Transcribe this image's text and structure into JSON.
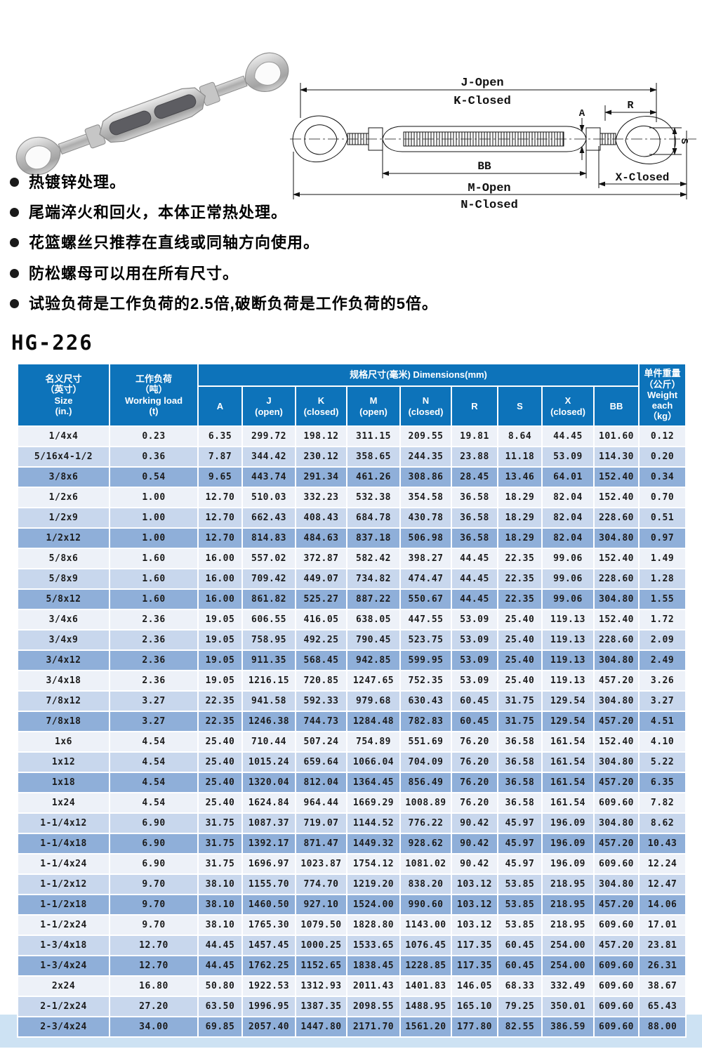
{
  "title": "HG-226",
  "notes": [
    "热镀锌处理。",
    "尾端淬火和回火，本体正常热处理。",
    "花篮螺丝只推荐在直线或同轴方向使用。",
    "防松螺母可以用在所有尺寸。",
    "试验负荷是工作负荷的2.5倍,破断负荷是工作负荷的5倍。"
  ],
  "diagram": {
    "labels": {
      "j_open": "J-Open",
      "k_closed": "K-Closed",
      "r": "R",
      "a": "A",
      "bb": "BB",
      "x_closed": "X-Closed",
      "m_open": "M-Open",
      "n_closed": "N-Closed",
      "s": "S"
    }
  },
  "table": {
    "header": {
      "size": "名义尺寸\n（英寸）\nSize\n(in.)",
      "working_load": "工作负荷\n（吨）\nWorking load\n(t)",
      "dimensions_group": "规格尺寸(毫米) Dimensions(mm)",
      "dimension_cols": [
        "A",
        "J\n(open)",
        "K\n(closed)",
        "M\n(open)",
        "N\n(closed)",
        "R",
        "S",
        "X\n(closed)",
        "BB"
      ],
      "weight": "单件重量\n（公斤）\nWeight each\n（kg）"
    },
    "rows": [
      [
        "1/4x4",
        "0.23",
        "6.35",
        "299.72",
        "198.12",
        "311.15",
        "209.55",
        "19.81",
        "8.64",
        "44.45",
        "101.60",
        "0.12"
      ],
      [
        "5/16x4-1/2",
        "0.36",
        "7.87",
        "344.42",
        "230.12",
        "358.65",
        "244.35",
        "23.88",
        "11.18",
        "53.09",
        "114.30",
        "0.20"
      ],
      [
        "3/8x6",
        "0.54",
        "9.65",
        "443.74",
        "291.34",
        "461.26",
        "308.86",
        "28.45",
        "13.46",
        "64.01",
        "152.40",
        "0.34"
      ],
      [
        "1/2x6",
        "1.00",
        "12.70",
        "510.03",
        "332.23",
        "532.38",
        "354.58",
        "36.58",
        "18.29",
        "82.04",
        "152.40",
        "0.70"
      ],
      [
        "1/2x9",
        "1.00",
        "12.70",
        "662.43",
        "408.43",
        "684.78",
        "430.78",
        "36.58",
        "18.29",
        "82.04",
        "228.60",
        "0.51"
      ],
      [
        "1/2x12",
        "1.00",
        "12.70",
        "814.83",
        "484.63",
        "837.18",
        "506.98",
        "36.58",
        "18.29",
        "82.04",
        "304.80",
        "0.97"
      ],
      [
        "5/8x6",
        "1.60",
        "16.00",
        "557.02",
        "372.87",
        "582.42",
        "398.27",
        "44.45",
        "22.35",
        "99.06",
        "152.40",
        "1.49"
      ],
      [
        "5/8x9",
        "1.60",
        "16.00",
        "709.42",
        "449.07",
        "734.82",
        "474.47",
        "44.45",
        "22.35",
        "99.06",
        "228.60",
        "1.28"
      ],
      [
        "5/8x12",
        "1.60",
        "16.00",
        "861.82",
        "525.27",
        "887.22",
        "550.67",
        "44.45",
        "22.35",
        "99.06",
        "304.80",
        "1.55"
      ],
      [
        "3/4x6",
        "2.36",
        "19.05",
        "606.55",
        "416.05",
        "638.05",
        "447.55",
        "53.09",
        "25.40",
        "119.13",
        "152.40",
        "1.72"
      ],
      [
        "3/4x9",
        "2.36",
        "19.05",
        "758.95",
        "492.25",
        "790.45",
        "523.75",
        "53.09",
        "25.40",
        "119.13",
        "228.60",
        "2.09"
      ],
      [
        "3/4x12",
        "2.36",
        "19.05",
        "911.35",
        "568.45",
        "942.85",
        "599.95",
        "53.09",
        "25.40",
        "119.13",
        "304.80",
        "2.49"
      ],
      [
        "3/4x18",
        "2.36",
        "19.05",
        "1216.15",
        "720.85",
        "1247.65",
        "752.35",
        "53.09",
        "25.40",
        "119.13",
        "457.20",
        "3.26"
      ],
      [
        "7/8x12",
        "3.27",
        "22.35",
        "941.58",
        "592.33",
        "979.68",
        "630.43",
        "60.45",
        "31.75",
        "129.54",
        "304.80",
        "3.27"
      ],
      [
        "7/8x18",
        "3.27",
        "22.35",
        "1246.38",
        "744.73",
        "1284.48",
        "782.83",
        "60.45",
        "31.75",
        "129.54",
        "457.20",
        "4.51"
      ],
      [
        "1x6",
        "4.54",
        "25.40",
        "710.44",
        "507.24",
        "754.89",
        "551.69",
        "76.20",
        "36.58",
        "161.54",
        "152.40",
        "4.10"
      ],
      [
        "1x12",
        "4.54",
        "25.40",
        "1015.24",
        "659.64",
        "1066.04",
        "704.09",
        "76.20",
        "36.58",
        "161.54",
        "304.80",
        "5.22"
      ],
      [
        "1x18",
        "4.54",
        "25.40",
        "1320.04",
        "812.04",
        "1364.45",
        "856.49",
        "76.20",
        "36.58",
        "161.54",
        "457.20",
        "6.35"
      ],
      [
        "1x24",
        "4.54",
        "25.40",
        "1624.84",
        "964.44",
        "1669.29",
        "1008.89",
        "76.20",
        "36.58",
        "161.54",
        "609.60",
        "7.82"
      ],
      [
        "1-1/4x12",
        "6.90",
        "31.75",
        "1087.37",
        "719.07",
        "1144.52",
        "776.22",
        "90.42",
        "45.97",
        "196.09",
        "304.80",
        "8.62"
      ],
      [
        "1-1/4x18",
        "6.90",
        "31.75",
        "1392.17",
        "871.47",
        "1449.32",
        "928.62",
        "90.42",
        "45.97",
        "196.09",
        "457.20",
        "10.43"
      ],
      [
        "1-1/4x24",
        "6.90",
        "31.75",
        "1696.97",
        "1023.87",
        "1754.12",
        "1081.02",
        "90.42",
        "45.97",
        "196.09",
        "609.60",
        "12.24"
      ],
      [
        "1-1/2x12",
        "9.70",
        "38.10",
        "1155.70",
        "774.70",
        "1219.20",
        "838.20",
        "103.12",
        "53.85",
        "218.95",
        "304.80",
        "12.47"
      ],
      [
        "1-1/2x18",
        "9.70",
        "38.10",
        "1460.50",
        "927.10",
        "1524.00",
        "990.60",
        "103.12",
        "53.85",
        "218.95",
        "457.20",
        "14.06"
      ],
      [
        "1-1/2x24",
        "9.70",
        "38.10",
        "1765.30",
        "1079.50",
        "1828.80",
        "1143.00",
        "103.12",
        "53.85",
        "218.95",
        "609.60",
        "17.01"
      ],
      [
        "1-3/4x18",
        "12.70",
        "44.45",
        "1457.45",
        "1000.25",
        "1533.65",
        "1076.45",
        "117.35",
        "60.45",
        "254.00",
        "457.20",
        "23.81"
      ],
      [
        "1-3/4x24",
        "12.70",
        "44.45",
        "1762.25",
        "1152.65",
        "1838.45",
        "1228.85",
        "117.35",
        "60.45",
        "254.00",
        "609.60",
        "26.31"
      ],
      [
        "2x24",
        "16.80",
        "50.80",
        "1922.53",
        "1312.93",
        "2011.43",
        "1401.83",
        "146.05",
        "68.33",
        "332.49",
        "609.60",
        "38.67"
      ],
      [
        "2-1/2x24",
        "27.20",
        "63.50",
        "1996.95",
        "1387.35",
        "2098.55",
        "1488.95",
        "165.10",
        "79.25",
        "350.01",
        "609.60",
        "65.43"
      ],
      [
        "2-3/4x24",
        "34.00",
        "69.85",
        "2057.40",
        "1447.80",
        "2171.70",
        "1561.20",
        "177.80",
        "82.55",
        "386.59",
        "609.60",
        "88.00"
      ]
    ]
  },
  "colors": {
    "header_blue": "#0d73ba",
    "row_light": "#edf1f8",
    "row_medium": "#c8d7ed",
    "row_dark": "#8fafd9",
    "footer_band": "#cde2f3"
  }
}
